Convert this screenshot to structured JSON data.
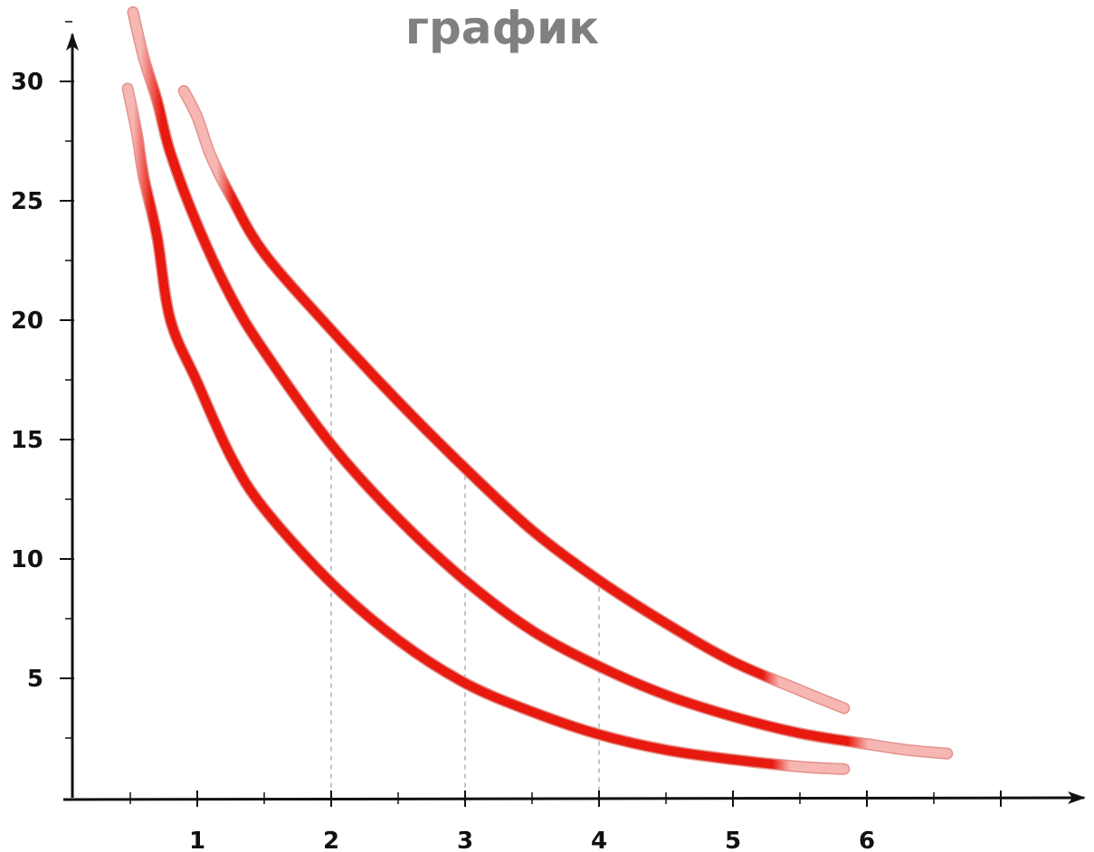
{
  "chart_data": {
    "type": "line",
    "title": "график",
    "xlabel": "",
    "ylabel": "",
    "xlim": [
      0,
      7.3
    ],
    "ylim": [
      0,
      33
    ],
    "x_ticks": [
      1,
      2,
      3,
      4,
      5,
      6
    ],
    "y_ticks": [
      5,
      10,
      15,
      20,
      25,
      30
    ],
    "x_minor_step": 0.5,
    "y_minor_step": 2.5,
    "grid": false,
    "guide_lines": [
      {
        "x": 2,
        "y_top": 18.8
      },
      {
        "x": 3,
        "y_top": 13.5
      },
      {
        "x": 4,
        "y_top": 8.8
      }
    ],
    "series": [
      {
        "x": [
          0.48,
          0.55,
          0.6,
          0.7,
          0.8,
          1.0,
          1.25,
          1.5,
          2.0,
          2.5,
          3.0,
          3.5,
          4.0,
          4.5,
          5.0,
          5.5,
          5.83
        ],
        "y": [
          29.7,
          27.8,
          26.0,
          23.5,
          20.0,
          17.4,
          14.3,
          12.1,
          9.0,
          6.6,
          4.8,
          3.6,
          2.65,
          2.0,
          1.6,
          1.3,
          1.2
        ],
        "fade_start_x": 0.55,
        "fade_end_x": 5.4
      },
      {
        "x": [
          0.52,
          0.6,
          0.7,
          0.8,
          1.0,
          1.25,
          1.5,
          2.0,
          2.5,
          3.0,
          3.5,
          4.0,
          4.5,
          5.0,
          5.5,
          6.0,
          6.3,
          6.6
        ],
        "y": [
          32.9,
          31.0,
          29.2,
          27.0,
          24.0,
          21.0,
          18.7,
          14.8,
          11.7,
          9.1,
          7.0,
          5.5,
          4.3,
          3.4,
          2.7,
          2.25,
          2.0,
          1.85
        ],
        "fade_start_x": 0.61,
        "fade_end_x": 5.98
      },
      {
        "x": [
          0.9,
          1.0,
          1.1,
          1.25,
          1.5,
          2.0,
          2.5,
          3.0,
          3.5,
          4.0,
          4.5,
          5.0,
          5.5,
          5.83
        ],
        "y": [
          29.6,
          28.5,
          26.9,
          25.2,
          22.8,
          19.6,
          16.6,
          13.8,
          11.2,
          9.1,
          7.3,
          5.7,
          4.5,
          3.75
        ],
        "fade_start_x": 1.17,
        "fade_end_x": 5.32
      }
    ],
    "colors": {
      "curve": "#e81a10",
      "curve_faded": "#f6b7b3",
      "curve_outline": "#e3928c",
      "axis": "#111111",
      "guide": "#b0b0b0",
      "title": "#808080"
    }
  }
}
